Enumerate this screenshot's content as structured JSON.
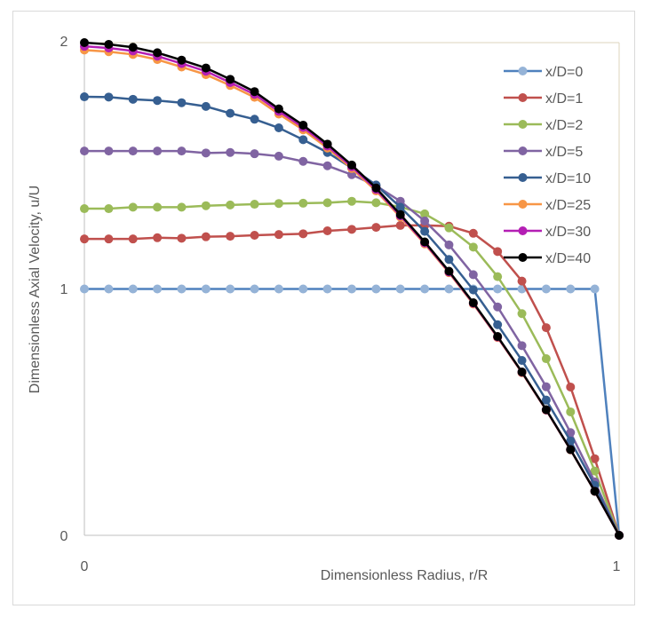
{
  "chart_data": {
    "type": "line",
    "title": "",
    "xlabel": "Dimensionless Radius, r/R",
    "ylabel": "Dimensionless Axial Velocity, u/U",
    "xlim": [
      0,
      1
    ],
    "ylim": [
      0,
      2
    ],
    "xticks": [
      "0",
      "1"
    ],
    "yticks": [
      "0",
      "1",
      "2"
    ],
    "grid": false,
    "legend": "right",
    "x": [
      0,
      0.0455,
      0.0909,
      0.1364,
      0.1818,
      0.2273,
      0.2727,
      0.3182,
      0.3636,
      0.4091,
      0.4545,
      0.5,
      0.5455,
      0.5909,
      0.6364,
      0.6818,
      0.7273,
      0.7727,
      0.8182,
      0.8636,
      0.9091,
      0.9545,
      1
    ],
    "series": [
      {
        "name": "x/D=0",
        "line": "#4f81bd",
        "marker": "#95b3d7",
        "values": [
          1,
          1,
          1,
          1,
          1,
          1,
          1,
          1,
          1,
          1,
          1,
          1,
          1,
          1,
          1,
          1,
          1,
          1,
          1,
          1,
          1,
          1,
          0
        ]
      },
      {
        "name": "x/D=1",
        "line": "#c0504d",
        "marker": "#c0504d",
        "values": [
          1.203,
          1.203,
          1.203,
          1.208,
          1.206,
          1.212,
          1.214,
          1.218,
          1.221,
          1.224,
          1.236,
          1.242,
          1.25,
          1.258,
          1.258,
          1.255,
          1.226,
          1.152,
          1.032,
          0.843,
          0.602,
          0.311,
          0
        ]
      },
      {
        "name": "x/D=2",
        "line": "#9bbb59",
        "marker": "#9bbb59",
        "values": [
          1.326,
          1.326,
          1.332,
          1.332,
          1.332,
          1.338,
          1.341,
          1.344,
          1.347,
          1.348,
          1.35,
          1.356,
          1.35,
          1.333,
          1.305,
          1.248,
          1.17,
          1.05,
          0.9,
          0.717,
          0.501,
          0.261,
          0
        ]
      },
      {
        "name": "x/D=5",
        "line": "#8064a2",
        "marker": "#8064a2",
        "values": [
          1.56,
          1.56,
          1.56,
          1.56,
          1.56,
          1.552,
          1.554,
          1.549,
          1.539,
          1.518,
          1.5,
          1.464,
          1.419,
          1.356,
          1.276,
          1.179,
          1.058,
          0.927,
          0.77,
          0.603,
          0.417,
          0.217,
          0
        ]
      },
      {
        "name": "x/D=10",
        "line": "#365f91",
        "marker": "#365f91",
        "values": [
          1.78,
          1.779,
          1.77,
          1.765,
          1.756,
          1.741,
          1.713,
          1.689,
          1.654,
          1.606,
          1.554,
          1.491,
          1.422,
          1.332,
          1.234,
          1.12,
          0.996,
          0.855,
          0.71,
          0.549,
          0.383,
          0.203,
          0
        ]
      },
      {
        "name": "x/D=25",
        "line": "#f79646",
        "marker": "#f79646",
        "values": [
          1.97,
          1.963,
          1.952,
          1.931,
          1.901,
          1.87,
          1.826,
          1.778,
          1.71,
          1.646,
          1.572,
          1.489,
          1.398,
          1.292,
          1.183,
          1.066,
          0.939,
          0.803,
          0.66,
          0.508,
          0.347,
          0.178,
          0
        ]
      },
      {
        "name": "x/D=30",
        "line": "#b41fb4",
        "marker": "#b41fb4",
        "values": [
          1.985,
          1.978,
          1.966,
          1.945,
          1.915,
          1.884,
          1.838,
          1.79,
          1.721,
          1.656,
          1.58,
          1.496,
          1.404,
          1.297,
          1.187,
          1.069,
          0.942,
          0.805,
          0.662,
          0.509,
          0.348,
          0.179,
          0
        ]
      },
      {
        "name": "x/D=40",
        "line": "#000000",
        "marker": "#000000",
        "values": [
          2.0,
          1.993,
          1.981,
          1.959,
          1.929,
          1.897,
          1.851,
          1.801,
          1.731,
          1.665,
          1.588,
          1.503,
          1.41,
          1.302,
          1.191,
          1.072,
          0.944,
          0.807,
          0.663,
          0.51,
          0.348,
          0.179,
          0
        ]
      }
    ]
  }
}
